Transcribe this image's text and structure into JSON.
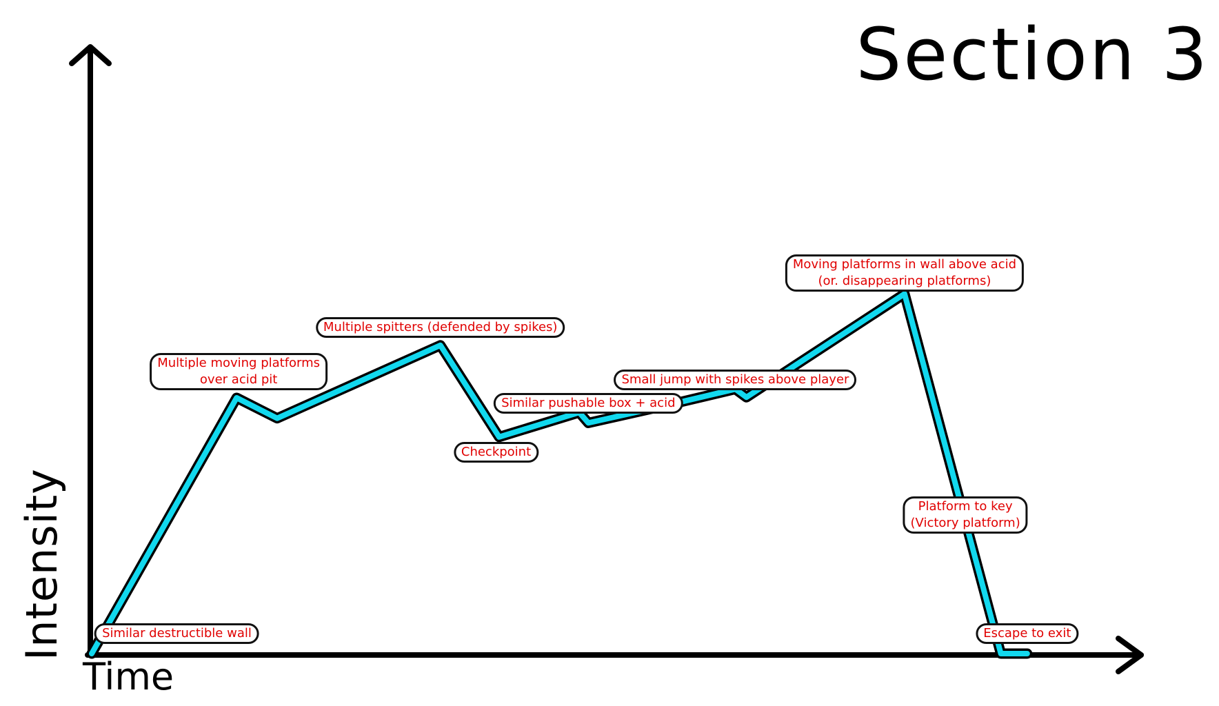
{
  "chart_data": {
    "type": "line",
    "title": "Section 3",
    "xlabel": "Time",
    "ylabel": "Intensity",
    "xlim": [
      0,
      100
    ],
    "ylim": [
      0,
      100
    ],
    "grid": false,
    "line_color": "#12d8ee",
    "outline_color": "#000000",
    "annotation_text_color": "#e00000",
    "series": [
      {
        "x": [
          0,
          14.3,
          18.3,
          34.4,
          40.2,
          48.1,
          49,
          56.2,
          63.5,
          64.6,
          80.2,
          89.7,
          92.3
        ],
        "y": [
          0,
          43.8,
          40.3,
          52.8,
          37.1,
          41.3,
          39.5,
          42.3,
          45.3,
          43.9,
          61.6,
          0,
          0
        ]
      }
    ],
    "annotations": [
      {
        "lines": [
          "Similar destructible wall"
        ],
        "x": 8.4,
        "y": 3.4
      },
      {
        "lines": [
          "Multiple moving platforms",
          "over acid pit"
        ],
        "x": 14.5,
        "y": 48.3
      },
      {
        "lines": [
          "Multiple spitters (defended by spikes)"
        ],
        "x": 34.4,
        "y": 55.8
      },
      {
        "lines": [
          "Checkpoint"
        ],
        "x": 39.9,
        "y": 34.5
      },
      {
        "lines": [
          "Similar pushable box + acid"
        ],
        "x": 49,
        "y": 42.8
      },
      {
        "lines": [
          "Small jump with spikes above player"
        ],
        "x": 63.5,
        "y": 46.9
      },
      {
        "lines": [
          "Moving platforms in wall above acid",
          "(or. disappearing platforms)"
        ],
        "x": 80.2,
        "y": 65.2
      },
      {
        "lines": [
          "Platform to key",
          "(Victory platform)"
        ],
        "x": 86.2,
        "y": 23.7
      },
      {
        "lines": [
          "Escape to exit"
        ],
        "x": 92.3,
        "y": 3.4
      }
    ]
  }
}
